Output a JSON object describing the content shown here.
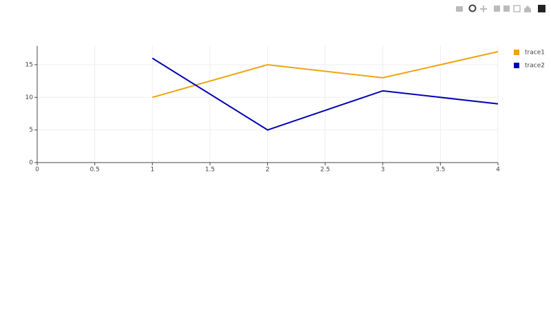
{
  "chart_data": {
    "type": "line",
    "x": [
      1,
      2,
      3,
      4
    ],
    "series": [
      {
        "name": "trace1",
        "color": "#f0a30a",
        "values": [
          10,
          15,
          13,
          17
        ]
      },
      {
        "name": "trace2",
        "color": "#0000b4",
        "values": [
          16,
          5,
          11,
          9
        ]
      }
    ],
    "xlim": [
      0,
      4
    ],
    "xticks": [
      0,
      0.5,
      1,
      1.5,
      2,
      2.5,
      3,
      3.5,
      4
    ],
    "ylim": [
      0,
      17.9
    ],
    "yticks": [
      0,
      5,
      10,
      15
    ],
    "grid": true,
    "legend": "top-right"
  }
}
